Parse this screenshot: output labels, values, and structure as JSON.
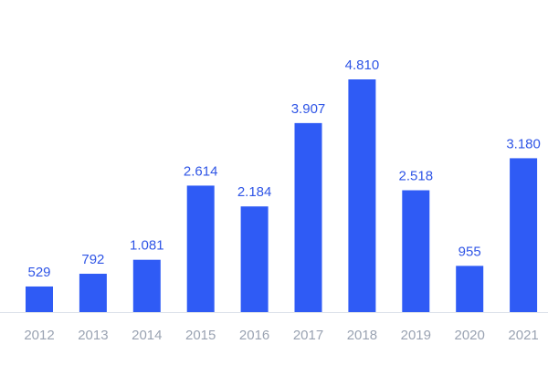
{
  "chart_data": {
    "type": "bar",
    "categories": [
      "2012",
      "2013",
      "2014",
      "2015",
      "2016",
      "2017",
      "2018",
      "2019",
      "2020",
      "2021"
    ],
    "values": [
      529,
      792,
      1081,
      2614,
      2184,
      3907,
      4810,
      2518,
      955,
      3180
    ],
    "value_labels": [
      "529",
      "792",
      "1.081",
      "2.614",
      "2.184",
      "3.907",
      "4.810",
      "2.518",
      "955",
      "3.180"
    ],
    "color": "#2f5bf5"
  }
}
